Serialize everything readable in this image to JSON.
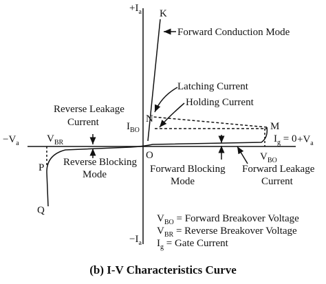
{
  "axes": {
    "y_pos": {
      "symbol": "+I",
      "sub": "a"
    },
    "y_neg": {
      "symbol": "−I",
      "sub": "a"
    },
    "x_neg": {
      "symbol": "−V",
      "sub": "a"
    },
    "x_pos": {
      "symbol": "+V",
      "sub": "a"
    },
    "origin": "O"
  },
  "points": {
    "K": "K",
    "N": "N",
    "M": "M",
    "P": "P",
    "Q": "Q"
  },
  "labels": {
    "i_bo": {
      "symbol": "I",
      "sub": "BO"
    },
    "v_br": {
      "symbol": "V",
      "sub": "BR"
    },
    "v_bo": {
      "symbol": "V",
      "sub": "BO"
    },
    "ig_zero": {
      "symbol": "I",
      "sub": "g",
      "rest": " = 0"
    }
  },
  "annotations": {
    "forward_conduction": "Forward Conduction Mode",
    "latching": "Latching Current",
    "holding": "Holding Current",
    "reverse_leakage": [
      "Reverse Leakage",
      "Current"
    ],
    "reverse_blocking": [
      "Reverse Blocking",
      "Mode"
    ],
    "forward_blocking": [
      "Forward Blocking",
      "Mode"
    ],
    "forward_leakage": [
      "Forward Leakage",
      "Current"
    ]
  },
  "legend": [
    {
      "symbol": "V",
      "sub": "BO",
      "text": " = Forward Breakover Voltage"
    },
    {
      "symbol": "V",
      "sub": "BR",
      "text": " = Reverse Breakover Voltage"
    },
    {
      "symbol": "I",
      "sub": "g",
      "text": " = Gate Current"
    }
  ],
  "caption": "(b) I-V Characteristics Curve"
}
